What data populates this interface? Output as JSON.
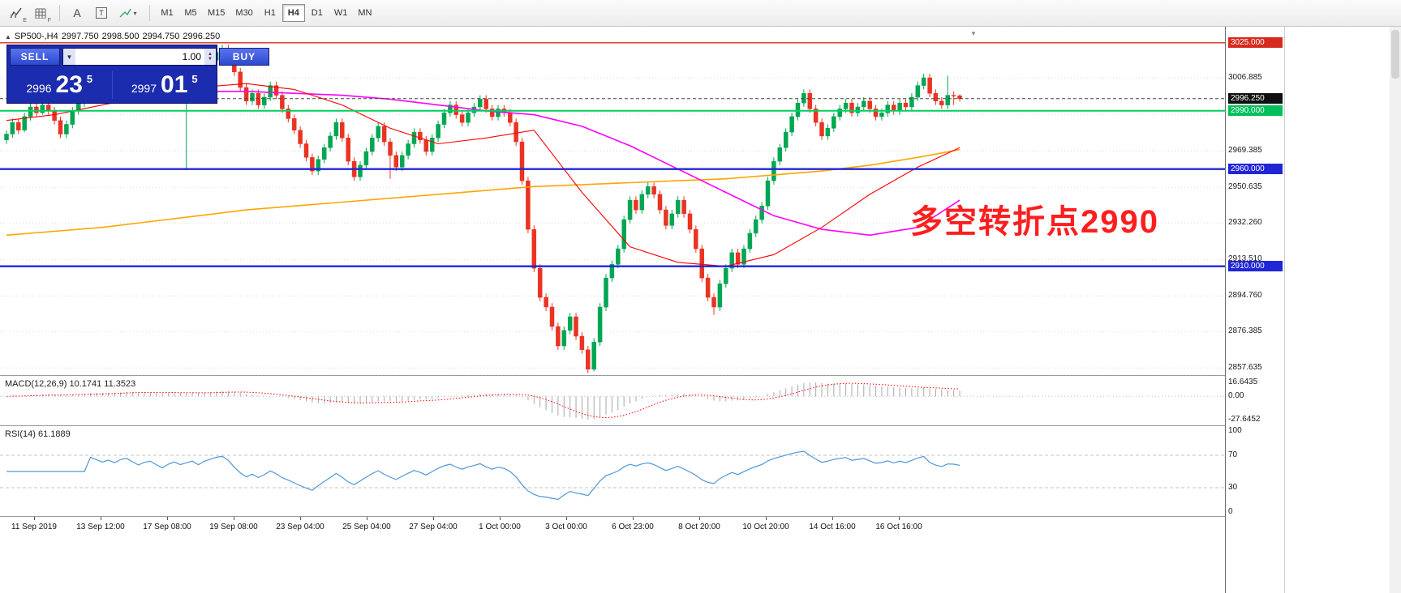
{
  "colors": {
    "bull": "#00a651",
    "bear": "#ea3323",
    "ma_fast": "#ff0000",
    "ma_mid": "#ff00ff",
    "ma_slow": "#ffa500",
    "level_red": "#d92b1e",
    "level_green": "#00cf5e",
    "level_blue": "#2026d6",
    "current": "#444444",
    "macd_hist": "#a8a8a8",
    "macd_signal": "#ff0000",
    "rsi_line": "#4f97d7",
    "grid": "#d9d9d9",
    "annotation": "#ff1e1e"
  },
  "icons": {
    "collapse": "▲",
    "shift": "▼",
    "combo_down": "▼",
    "spin_up": "▲",
    "spin_down": "▼",
    "line_caret": "▾"
  },
  "toolbar": {
    "tool_letters": {
      "charts": "E",
      "grid": "F",
      "text": "A",
      "label": "T"
    },
    "timeframes": [
      "M1",
      "M5",
      "M15",
      "M30",
      "H1",
      "H4",
      "D1",
      "W1",
      "MN"
    ],
    "active_timeframe": "H4"
  },
  "header": {
    "symbol": "SP500-,H4",
    "open": "2997.750",
    "high": "2998.500",
    "low": "2994.750",
    "close": "2996.250"
  },
  "trade_panel": {
    "sell_label": "SELL",
    "buy_label": "BUY",
    "volume": "1.00",
    "bid": {
      "big": "2996",
      "pips": "23",
      "frac": "5"
    },
    "ask": {
      "big": "2997",
      "pips": "01",
      "frac": "5"
    }
  },
  "annotation": {
    "text": "多空转折点2990"
  },
  "scale": {
    "max": 3032,
    "min": 2854
  },
  "grid_prices": [
    3006.885,
    2988.135,
    2969.385,
    2950.635,
    2932.26,
    2913.51,
    2894.76,
    2876.385,
    2857.635
  ],
  "price_axis": [
    {
      "price": 3025.0,
      "label": "3025.000",
      "style": "red"
    },
    {
      "price": 3006.885,
      "label": "3006.885",
      "style": "plain"
    },
    {
      "price": 2996.25,
      "label": "2996.250",
      "style": "black"
    },
    {
      "price": 2990.0,
      "label": "2990.000",
      "style": "green"
    },
    {
      "price": 2969.385,
      "label": "2969.385",
      "style": "plain"
    },
    {
      "price": 2960.0,
      "label": "2960.000",
      "style": "blue"
    },
    {
      "price": 2950.635,
      "label": "2950.635",
      "style": "plain"
    },
    {
      "price": 2932.26,
      "label": "2932.260",
      "style": "plain"
    },
    {
      "price": 2913.51,
      "label": "2913.510",
      "style": "plain"
    },
    {
      "price": 2910.0,
      "label": "2910.000",
      "style": "blue"
    },
    {
      "price": 2894.76,
      "label": "2894.760",
      "style": "plain"
    },
    {
      "price": 2876.385,
      "label": "2876.385",
      "style": "plain"
    },
    {
      "price": 2857.635,
      "label": "2857.635",
      "style": "plain"
    }
  ],
  "levels": [
    {
      "price": 3025.0,
      "color_key": "level_red",
      "width": 1.4,
      "dash": ""
    },
    {
      "price": 2990.0,
      "color_key": "level_green",
      "width": 2,
      "dash": ""
    },
    {
      "price": 2960.0,
      "color_key": "level_blue",
      "width": 2.4,
      "dash": ""
    },
    {
      "price": 2910.0,
      "color_key": "level_blue",
      "width": 2.4,
      "dash": ""
    },
    {
      "price": 2996.25,
      "color_key": "current",
      "width": 1,
      "dash": "4,3"
    }
  ],
  "macd": {
    "label": "MACD(12,26,9) 10.1741 11.3523",
    "axis": [
      {
        "v": 16.6435,
        "label": "16.6435"
      },
      {
        "v": 0,
        "label": "0.00"
      },
      {
        "v": -27.6452,
        "label": "-27.6452"
      }
    ]
  },
  "rsi": {
    "label": "RSI(14) 61.1889",
    "levels": [
      70,
      30
    ],
    "axis": [
      {
        "v": 100,
        "label": "100"
      },
      {
        "v": 70,
        "label": "70"
      },
      {
        "v": 30,
        "label": "30"
      },
      {
        "v": 0,
        "label": "0"
      }
    ]
  },
  "time_axis": [
    "11 Sep 2019",
    "13 Sep 12:00",
    "17 Sep 08:00",
    "19 Sep 08:00",
    "23 Sep 04:00",
    "25 Sep 04:00",
    "27 Sep 04:00",
    "1 Oct 00:00",
    "3 Oct 00:00",
    "6 Oct 23:00",
    "8 Oct 20:00",
    "10 Oct 20:00",
    "14 Oct 16:00",
    "16 Oct 16:00"
  ],
  "chart_data": {
    "type": "candlestick",
    "symbol": "SP500",
    "timeframe": "H4",
    "candles": [
      [
        2975,
        2980,
        2973,
        2978
      ],
      [
        2978,
        2986,
        2976,
        2984
      ],
      [
        2984,
        2986,
        2978,
        2980
      ],
      [
        2980,
        2989,
        2979,
        2987
      ],
      [
        2987,
        2994,
        2985,
        2992
      ],
      [
        2992,
        2994,
        2987,
        2989
      ],
      [
        2989,
        2995,
        2988,
        2993
      ],
      [
        2993,
        2995,
        2988,
        2990
      ],
      [
        2990,
        2992,
        2983,
        2985
      ],
      [
        2985,
        2987,
        2976,
        2978
      ],
      [
        2978,
        2985,
        2976,
        2983
      ],
      [
        2983,
        2992,
        2981,
        2990
      ],
      [
        2990,
        2996,
        2988,
        2994
      ],
      [
        2994,
        3000,
        2992,
        2998
      ],
      [
        2998,
        3004,
        2996,
        3002
      ],
      [
        3002,
        3004,
        2997,
        2999
      ],
      [
        2999,
        3001,
        2994,
        2996
      ],
      [
        2996,
        3002,
        2994,
        3000
      ],
      [
        3000,
        3002,
        2995,
        2997
      ],
      [
        2997,
        3005,
        2995,
        3003
      ],
      [
        3003,
        3008,
        3001,
        3006
      ],
      [
        3006,
        3008,
        2996,
        3002
      ],
      [
        3002,
        3004,
        2996,
        2998
      ],
      [
        2998,
        3005,
        2996,
        3003
      ],
      [
        3003,
        3007,
        3001,
        3005
      ],
      [
        3005,
        3007,
        2999,
        3001
      ],
      [
        3001,
        3003,
        2995,
        2997
      ],
      [
        2997,
        3005,
        2995,
        3003
      ],
      [
        3003,
        3009,
        3001,
        3007
      ],
      [
        3007,
        3009,
        3002,
        3004
      ],
      [
        3004,
        3009,
        2960,
        3007
      ],
      [
        3007,
        3012,
        3005,
        3010
      ],
      [
        3010,
        3012,
        3004,
        3006
      ],
      [
        3006,
        3014,
        3004,
        3012
      ],
      [
        3012,
        3018,
        3010,
        3016
      ],
      [
        3016,
        3023,
        3014,
        3020
      ],
      [
        3020,
        3024,
        3018,
        3022
      ],
      [
        3022,
        3024,
        3016,
        3018
      ],
      [
        3018,
        3020,
        3008,
        3010
      ],
      [
        3010,
        3012,
        3000,
        3002
      ],
      [
        3002,
        3004,
        2993,
        2995
      ],
      [
        2995,
        3001,
        2993,
        2999
      ],
      [
        2999,
        3001,
        2991,
        2993
      ],
      [
        2993,
        2999,
        2991,
        2997
      ],
      [
        2997,
        3005,
        2995,
        3003
      ],
      [
        3003,
        3005,
        2996,
        2998
      ],
      [
        2998,
        3000,
        2989,
        2991
      ],
      [
        2991,
        2993,
        2984,
        2986
      ],
      [
        2986,
        2988,
        2978,
        2980
      ],
      [
        2980,
        2982,
        2971,
        2973
      ],
      [
        2973,
        2975,
        2964,
        2966
      ],
      [
        2966,
        2968,
        2957,
        2959
      ],
      [
        2959,
        2967,
        2957,
        2965
      ],
      [
        2965,
        2973,
        2963,
        2971
      ],
      [
        2971,
        2979,
        2969,
        2977
      ],
      [
        2977,
        2986,
        2975,
        2984
      ],
      [
        2984,
        2986,
        2974,
        2976
      ],
      [
        2976,
        2978,
        2962,
        2964
      ],
      [
        2964,
        2966,
        2954,
        2956
      ],
      [
        2956,
        2964,
        2954,
        2962
      ],
      [
        2962,
        2971,
        2960,
        2969
      ],
      [
        2969,
        2978,
        2967,
        2976
      ],
      [
        2976,
        2984,
        2974,
        2982
      ],
      [
        2982,
        2984,
        2972,
        2974
      ],
      [
        2974,
        2976,
        2955,
        2967
      ],
      [
        2967,
        2969,
        2959,
        2961
      ],
      [
        2961,
        2969,
        2959,
        2967
      ],
      [
        2967,
        2975,
        2965,
        2973
      ],
      [
        2973,
        2981,
        2971,
        2979
      ],
      [
        2979,
        2981,
        2973,
        2975
      ],
      [
        2975,
        2977,
        2967,
        2969
      ],
      [
        2969,
        2978,
        2967,
        2976
      ],
      [
        2976,
        2985,
        2974,
        2983
      ],
      [
        2983,
        2991,
        2981,
        2989
      ],
      [
        2989,
        2995,
        2987,
        2993
      ],
      [
        2993,
        2995,
        2986,
        2988
      ],
      [
        2988,
        2990,
        2982,
        2984
      ],
      [
        2984,
        2991,
        2982,
        2989
      ],
      [
        2989,
        2994,
        2987,
        2992
      ],
      [
        2992,
        2998,
        2990,
        2996
      ],
      [
        2996,
        2998,
        2989,
        2991
      ],
      [
        2991,
        2993,
        2985,
        2987
      ],
      [
        2987,
        2993,
        2985,
        2991
      ],
      [
        2991,
        2993,
        2987,
        2989
      ],
      [
        2989,
        2991,
        2982,
        2984
      ],
      [
        2984,
        2986,
        2972,
        2974
      ],
      [
        2974,
        2976,
        2952,
        2954
      ],
      [
        2954,
        2956,
        2927,
        2929
      ],
      [
        2929,
        2931,
        2907,
        2909
      ],
      [
        2909,
        2911,
        2892,
        2894
      ],
      [
        2894,
        2896,
        2887,
        2889
      ],
      [
        2889,
        2891,
        2877,
        2879
      ],
      [
        2879,
        2881,
        2867,
        2869
      ],
      [
        2869,
        2879,
        2867,
        2877
      ],
      [
        2877,
        2886,
        2875,
        2884
      ],
      [
        2884,
        2886,
        2872,
        2874
      ],
      [
        2874,
        2876,
        2865,
        2867
      ],
      [
        2867,
        2869,
        2855,
        2857
      ],
      [
        2857,
        2873,
        2856,
        2871
      ],
      [
        2871,
        2891,
        2869,
        2889
      ],
      [
        2889,
        2906,
        2887,
        2904
      ],
      [
        2904,
        2913,
        2902,
        2911
      ],
      [
        2911,
        2921,
        2909,
        2919
      ],
      [
        2919,
        2936,
        2917,
        2934
      ],
      [
        2934,
        2946,
        2932,
        2944
      ],
      [
        2944,
        2946,
        2937,
        2939
      ],
      [
        2939,
        2949,
        2937,
        2947
      ],
      [
        2947,
        2953,
        2945,
        2951
      ],
      [
        2951,
        2953,
        2945,
        2947
      ],
      [
        2947,
        2949,
        2937,
        2939
      ],
      [
        2939,
        2941,
        2929,
        2931
      ],
      [
        2931,
        2939,
        2929,
        2937
      ],
      [
        2937,
        2946,
        2935,
        2944
      ],
      [
        2944,
        2946,
        2935,
        2937
      ],
      [
        2937,
        2939,
        2927,
        2929
      ],
      [
        2929,
        2931,
        2917,
        2919
      ],
      [
        2919,
        2921,
        2902,
        2904
      ],
      [
        2904,
        2906,
        2892,
        2894
      ],
      [
        2894,
        2896,
        2885,
        2889
      ],
      [
        2889,
        2903,
        2887,
        2901
      ],
      [
        2901,
        2911,
        2899,
        2909
      ],
      [
        2909,
        2919,
        2907,
        2917
      ],
      [
        2917,
        2919,
        2909,
        2911
      ],
      [
        2911,
        2921,
        2909,
        2919
      ],
      [
        2919,
        2929,
        2917,
        2927
      ],
      [
        2927,
        2936,
        2925,
        2934
      ],
      [
        2934,
        2943,
        2932,
        2941
      ],
      [
        2941,
        2956,
        2939,
        2954
      ],
      [
        2954,
        2966,
        2952,
        2964
      ],
      [
        2964,
        2973,
        2962,
        2971
      ],
      [
        2971,
        2981,
        2969,
        2979
      ],
      [
        2979,
        2989,
        2977,
        2987
      ],
      [
        2987,
        2996,
        2985,
        2994
      ],
      [
        2994,
        3001,
        2992,
        2999
      ],
      [
        2999,
        3001,
        2989,
        2991
      ],
      [
        2991,
        2993,
        2982,
        2984
      ],
      [
        2984,
        2986,
        2975,
        2977
      ],
      [
        2977,
        2983,
        2975,
        2981
      ],
      [
        2981,
        2989,
        2979,
        2987
      ],
      [
        2987,
        2993,
        2985,
        2991
      ],
      [
        2991,
        2996,
        2989,
        2994
      ],
      [
        2994,
        2996,
        2987,
        2989
      ],
      [
        2989,
        2994,
        2987,
        2992
      ],
      [
        2992,
        2997,
        2990,
        2995
      ],
      [
        2995,
        2997,
        2989,
        2991
      ],
      [
        2991,
        2993,
        2985,
        2987
      ],
      [
        2987,
        2991,
        2985,
        2989
      ],
      [
        2989,
        2995,
        2987,
        2993
      ],
      [
        2993,
        2995,
        2988,
        2990
      ],
      [
        2990,
        2996,
        2988,
        2994
      ],
      [
        2994,
        2996,
        2990,
        2992
      ],
      [
        2992,
        2999,
        2990,
        2997
      ],
      [
        2997,
        3005,
        2995,
        3003
      ],
      [
        3003,
        3009,
        3001,
        3007
      ],
      [
        3007,
        3009,
        2997,
        2999
      ],
      [
        2999,
        3001,
        2993,
        2995
      ],
      [
        2995,
        2997,
        2991,
        2993
      ],
      [
        2993,
        3008,
        2991,
        2998
      ],
      [
        2998,
        3000,
        2993,
        2997.75
      ],
      [
        2997.75,
        2998.5,
        2994.75,
        2996.25
      ]
    ],
    "ma": {
      "step": 8,
      "fast_red": [
        2985,
        2988,
        2993,
        2998,
        3002,
        3004,
        3001,
        2993,
        2981,
        2973,
        2976,
        2980,
        2948,
        2920,
        2912,
        2910,
        2916,
        2930,
        2947,
        2961,
        2971
      ],
      "mid_magenta": [
        3004,
        3003,
        3002,
        3001,
        3000,
        3000,
        2999,
        2998,
        2996,
        2993,
        2990,
        2988,
        2982,
        2972,
        2960,
        2948,
        2936,
        2929,
        2926,
        2930,
        2944
      ],
      "slow_orange": [
        2926,
        2928,
        2930,
        2933,
        2936,
        2939,
        2941,
        2943,
        2945,
        2947,
        2949,
        2951,
        2952,
        2953,
        2954,
        2955,
        2957,
        2959,
        2962,
        2966,
        2970
      ]
    }
  }
}
